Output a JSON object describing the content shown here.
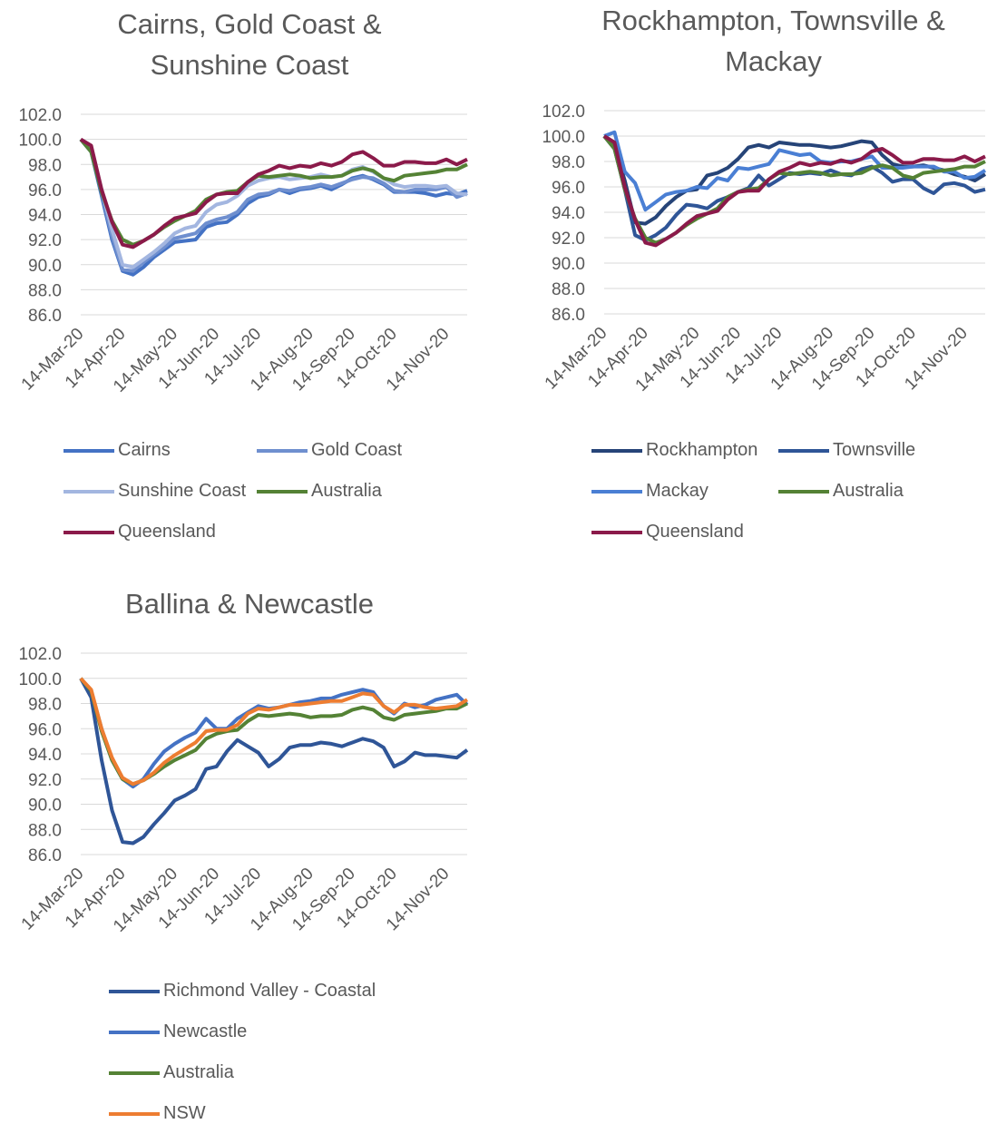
{
  "chart_data": [
    {
      "type": "line",
      "title": "Cairns, Gold Coast & Sunshine Coast",
      "categories": [
        "14-Mar-20",
        null,
        null,
        null,
        "14-Apr-20",
        null,
        null,
        null,
        null,
        "14-May-20",
        null,
        null,
        null,
        "14-Jun-20",
        null,
        null,
        null,
        "14-Jul-20",
        null,
        null,
        null,
        null,
        "14-Aug-20",
        null,
        null,
        null,
        "14-Sep-20",
        null,
        null,
        null,
        "14-Oct-20",
        null,
        null,
        null,
        null,
        "14-Nov-20",
        null,
        null
      ],
      "ylim": [
        86,
        102
      ],
      "yticks": [
        {
          "value": 86,
          "label": "86.0"
        },
        {
          "value": 88,
          "label": "88.0"
        },
        {
          "value": 90,
          "label": "90.0"
        },
        {
          "value": 92,
          "label": "92.0"
        },
        {
          "value": 94,
          "label": "94.0"
        },
        {
          "value": 96,
          "label": "96.0"
        },
        {
          "value": 98,
          "label": "98.0"
        },
        {
          "value": 100,
          "label": "100.0"
        },
        {
          "value": 102,
          "label": "102.0"
        }
      ],
      "grid": true,
      "series": [
        {
          "name": "Cairns",
          "color": "#4472c4",
          "values": [
            100,
            99,
            95.5,
            92,
            89.5,
            89.2,
            89.8,
            90.6,
            91.2,
            91.8,
            91.9,
            92.0,
            93.0,
            93.3,
            93.4,
            94.0,
            94.9,
            95.4,
            95.6,
            96.0,
            95.7,
            96.0,
            96.1,
            96.3,
            96.0,
            96.4,
            96.9,
            97.1,
            96.8,
            96.4,
            95.8,
            95.8,
            95.8,
            95.7,
            95.5,
            95.7,
            95.6,
            95.9
          ]
        },
        {
          "name": "Gold Coast",
          "color": "#6f8fcf",
          "values": [
            100,
            99.2,
            95.8,
            92.3,
            89.6,
            89.5,
            90.2,
            90.8,
            91.4,
            92.1,
            92.3,
            92.5,
            93.3,
            93.6,
            93.8,
            94.2,
            95.2,
            95.6,
            95.7,
            96.0,
            95.9,
            96.1,
            96.2,
            96.4,
            96.2,
            96.5,
            96.8,
            97.0,
            96.9,
            96.5,
            95.9,
            95.8,
            96.0,
            96.0,
            96.0,
            96.2,
            95.4,
            95.7
          ]
        },
        {
          "name": "Sunshine Coast",
          "color": "#a3b6e0",
          "values": [
            100,
            99.3,
            96,
            92.8,
            90.0,
            89.8,
            90.4,
            91.0,
            91.7,
            92.5,
            92.9,
            93.1,
            94.2,
            94.8,
            95.0,
            95.5,
            96.3,
            96.7,
            96.9,
            97.0,
            96.8,
            96.9,
            97.0,
            97.2,
            97.0,
            97.1,
            97.6,
            97.8,
            97.4,
            96.9,
            96.4,
            96.2,
            96.3,
            96.3,
            96.2,
            96.3,
            95.7,
            95.6
          ]
        },
        {
          "name": "Australia",
          "color": "#548235",
          "values": [
            100,
            99,
            95.8,
            93.5,
            92.0,
            91.6,
            91.9,
            92.4,
            93.0,
            93.5,
            93.9,
            94.3,
            95.2,
            95.6,
            95.8,
            95.9,
            96.6,
            97.1,
            97.0,
            97.1,
            97.2,
            97.1,
            96.9,
            97.0,
            97.0,
            97.1,
            97.5,
            97.7,
            97.5,
            96.9,
            96.7,
            97.1,
            97.2,
            97.3,
            97.4,
            97.6,
            97.6,
            98.0
          ]
        },
        {
          "name": "Queensland",
          "color": "#8b1a4a",
          "values": [
            100,
            99.5,
            96.0,
            93.4,
            91.6,
            91.4,
            91.9,
            92.4,
            93.1,
            93.7,
            93.9,
            94.1,
            95.0,
            95.6,
            95.7,
            95.7,
            96.6,
            97.2,
            97.5,
            97.9,
            97.7,
            97.9,
            97.8,
            98.1,
            97.9,
            98.2,
            98.8,
            99.0,
            98.5,
            97.9,
            97.9,
            98.2,
            98.2,
            98.1,
            98.1,
            98.4,
            98.0,
            98.4
          ]
        }
      ]
    },
    {
      "type": "line",
      "title": "Rockhampton, Townsville & Mackay",
      "categories": [
        "14-Mar-20",
        null,
        null,
        null,
        "14-Apr-20",
        null,
        null,
        null,
        null,
        "14-May-20",
        null,
        null,
        null,
        "14-Jun-20",
        null,
        null,
        null,
        "14-Jul-20",
        null,
        null,
        null,
        null,
        "14-Aug-20",
        null,
        null,
        null,
        "14-Sep-20",
        null,
        null,
        null,
        "14-Oct-20",
        null,
        null,
        null,
        null,
        "14-Nov-20",
        null,
        null
      ],
      "ylim": [
        86,
        102
      ],
      "yticks": [
        {
          "value": 86,
          "label": "86.0"
        },
        {
          "value": 88,
          "label": "88.0"
        },
        {
          "value": 90,
          "label": "90.0"
        },
        {
          "value": 92,
          "label": "92.0"
        },
        {
          "value": 94,
          "label": "94.0"
        },
        {
          "value": 96,
          "label": "96.0"
        },
        {
          "value": 98,
          "label": "98.0"
        },
        {
          "value": 100,
          "label": "100.0"
        },
        {
          "value": 102,
          "label": "102.0"
        }
      ],
      "grid": true,
      "series": [
        {
          "name": "Rockhampton",
          "color": "#264478",
          "values": [
            100,
            99.3,
            96.5,
            93.2,
            93.1,
            93.6,
            94.5,
            95.2,
            95.7,
            95.8,
            96.9,
            97.1,
            97.5,
            98.2,
            99.1,
            99.3,
            99.1,
            99.5,
            99.4,
            99.3,
            99.3,
            99.2,
            99.1,
            99.2,
            99.4,
            99.6,
            99.5,
            98.5,
            97.8,
            97.6,
            97.6,
            97.7,
            97.5,
            97.3,
            97.0,
            96.8,
            96.5,
            97.0
          ]
        },
        {
          "name": "Townsville",
          "color": "#2f5597",
          "values": [
            100,
            99.0,
            95.8,
            92.2,
            91.8,
            92.2,
            92.8,
            93.8,
            94.6,
            94.5,
            94.3,
            94.9,
            95.2,
            95.6,
            95.9,
            96.9,
            96.1,
            96.6,
            97.1,
            97.0,
            97.1,
            97.0,
            97.3,
            97.0,
            96.9,
            97.4,
            97.6,
            97.1,
            96.4,
            96.6,
            96.6,
            95.9,
            95.5,
            96.2,
            96.3,
            96.1,
            95.6,
            95.8
          ]
        },
        {
          "name": "Mackay",
          "color": "#4a7fd4",
          "values": [
            100,
            100.3,
            97.2,
            96.3,
            94.2,
            94.8,
            95.4,
            95.6,
            95.7,
            96.0,
            95.9,
            96.7,
            96.5,
            97.5,
            97.4,
            97.6,
            97.8,
            98.9,
            98.7,
            98.5,
            98.6,
            98.0,
            97.9,
            98.0,
            98.0,
            98.2,
            98.4,
            97.5,
            97.5,
            97.5,
            97.6,
            97.6,
            97.6,
            97.2,
            97.2,
            96.7,
            96.8,
            97.3
          ]
        },
        {
          "name": "Australia",
          "color": "#548235",
          "values": [
            100,
            99,
            95.8,
            93.5,
            92.0,
            91.6,
            91.9,
            92.4,
            93.0,
            93.5,
            93.9,
            94.3,
            95.2,
            95.6,
            95.8,
            95.9,
            96.6,
            97.1,
            97.0,
            97.1,
            97.2,
            97.1,
            96.9,
            97.0,
            97.0,
            97.1,
            97.5,
            97.7,
            97.5,
            96.9,
            96.7,
            97.1,
            97.2,
            97.3,
            97.4,
            97.6,
            97.6,
            98.0
          ]
        },
        {
          "name": "Queensland",
          "color": "#8b1a4a",
          "values": [
            100,
            99.5,
            96.0,
            93.4,
            91.6,
            91.4,
            91.9,
            92.4,
            93.1,
            93.7,
            93.9,
            94.1,
            95.0,
            95.6,
            95.7,
            95.7,
            96.6,
            97.2,
            97.5,
            97.9,
            97.7,
            97.9,
            97.8,
            98.1,
            97.9,
            98.2,
            98.8,
            99.0,
            98.5,
            97.9,
            97.9,
            98.2,
            98.2,
            98.1,
            98.1,
            98.4,
            98.0,
            98.4
          ]
        }
      ]
    },
    {
      "type": "line",
      "title": "Ballina & Newcastle",
      "categories": [
        "14-Mar-20",
        null,
        null,
        null,
        "14-Apr-20",
        null,
        null,
        null,
        null,
        "14-May-20",
        null,
        null,
        null,
        "14-Jun-20",
        null,
        null,
        null,
        "14-Jul-20",
        null,
        null,
        null,
        null,
        "14-Aug-20",
        null,
        null,
        null,
        "14-Sep-20",
        null,
        null,
        null,
        "14-Oct-20",
        null,
        null,
        null,
        null,
        "14-Nov-20",
        null,
        null
      ],
      "ylim": [
        86,
        102
      ],
      "yticks": [
        {
          "value": 86,
          "label": "86.0"
        },
        {
          "value": 88,
          "label": "88.0"
        },
        {
          "value": 90,
          "label": "90.0"
        },
        {
          "value": 92,
          "label": "92.0"
        },
        {
          "value": 94,
          "label": "94.0"
        },
        {
          "value": 96,
          "label": "96.0"
        },
        {
          "value": 98,
          "label": "98.0"
        },
        {
          "value": 100,
          "label": "100.0"
        },
        {
          "value": 102,
          "label": "102.0"
        }
      ],
      "grid": true,
      "series": [
        {
          "name": "Richmond Valley - Coastal",
          "color": "#2f5597",
          "values": [
            100,
            98.5,
            93.5,
            89.5,
            87.0,
            86.9,
            87.4,
            88.4,
            89.3,
            90.3,
            90.7,
            91.2,
            92.8,
            93.0,
            94.2,
            95.1,
            94.6,
            94.1,
            93.0,
            93.6,
            94.5,
            94.7,
            94.7,
            94.9,
            94.8,
            94.6,
            94.9,
            95.2,
            95.0,
            94.5,
            93.0,
            93.4,
            94.1,
            93.9,
            93.9,
            93.8,
            93.7,
            94.3
          ]
        },
        {
          "name": "Newcastle",
          "color": "#4472c4",
          "values": [
            100,
            99,
            96,
            93.5,
            92,
            91.4,
            92,
            93.2,
            94.2,
            94.8,
            95.3,
            95.7,
            96.8,
            96.0,
            96.0,
            96.8,
            97.3,
            97.8,
            97.6,
            97.7,
            97.9,
            98.1,
            98.2,
            98.4,
            98.4,
            98.7,
            98.9,
            99.1,
            98.9,
            97.8,
            97.2,
            98.0,
            97.7,
            97.9,
            98.3,
            98.5,
            98.7,
            97.9
          ]
        },
        {
          "name": "Australia",
          "color": "#548235",
          "values": [
            100,
            99,
            95.8,
            93.5,
            92.0,
            91.6,
            91.9,
            92.4,
            93.0,
            93.5,
            93.9,
            94.3,
            95.2,
            95.6,
            95.8,
            95.9,
            96.6,
            97.1,
            97.0,
            97.1,
            97.2,
            97.1,
            96.9,
            97.0,
            97.0,
            97.1,
            97.5,
            97.7,
            97.5,
            96.9,
            96.7,
            97.1,
            97.2,
            97.3,
            97.4,
            97.6,
            97.6,
            98.0
          ]
        },
        {
          "name": "NSW",
          "color": "#ed7d31",
          "values": [
            100,
            99.1,
            96,
            93.7,
            92.1,
            91.6,
            91.9,
            92.5,
            93.3,
            93.9,
            94.4,
            94.9,
            95.8,
            95.9,
            95.9,
            96.3,
            97.2,
            97.6,
            97.5,
            97.7,
            97.9,
            97.9,
            98.0,
            98.1,
            98.2,
            98.2,
            98.5,
            98.8,
            98.7,
            97.8,
            97.3,
            97.9,
            97.9,
            97.7,
            97.6,
            97.7,
            97.8,
            98.3
          ]
        }
      ]
    }
  ]
}
